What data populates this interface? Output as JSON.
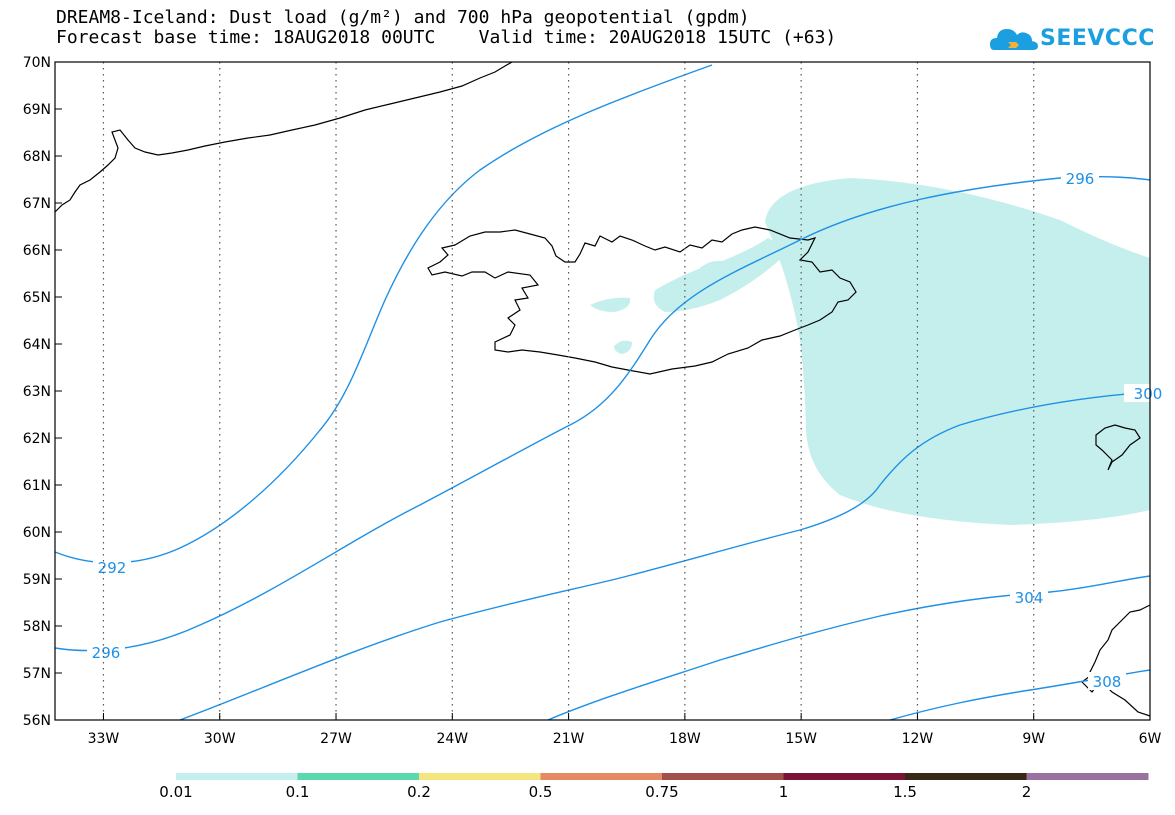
{
  "header": {
    "title_line1": "DREAM8-Iceland: Dust load (g/m²) and 700 hPa geopotential (gpdm)",
    "title_line2": "Forecast base time: 18AUG2018 00UTC    Valid time: 20AUG2018 15UTC (+63)"
  },
  "logo": {
    "text": "SEEVCCC",
    "icon": "cloud-icon",
    "color": "#1b9fe0"
  },
  "map": {
    "lat_range": [
      56,
      70
    ],
    "lon_range": [
      -34.25,
      -6
    ],
    "lat_labels": [
      "56N",
      "57N",
      "58N",
      "59N",
      "60N",
      "61N",
      "62N",
      "63N",
      "64N",
      "65N",
      "66N",
      "67N",
      "68N",
      "69N",
      "70N"
    ],
    "lon_labels": [
      "33W",
      "30W",
      "27W",
      "24W",
      "21W",
      "18W",
      "15W",
      "12W",
      "9W",
      "6W"
    ],
    "lon_ticks": [
      -33,
      -30,
      -27,
      -24,
      -21,
      -18,
      -15,
      -12,
      -9,
      -6
    ],
    "contour_color": "#1e90e6",
    "contour_labels": [
      "292",
      "296",
      "296",
      "300",
      "304",
      "308"
    ],
    "dust_color": "#c5efec"
  },
  "colorbar": {
    "labels": [
      "0.01",
      "0.1",
      "0.2",
      "0.5",
      "0.75",
      "1",
      "1.5",
      "2"
    ],
    "colors": [
      "#c5efec",
      "#5ad9b1",
      "#f5e57e",
      "#e58a64",
      "#a1504a",
      "#7a1538",
      "#3a2817",
      "#9a72a0"
    ]
  }
}
